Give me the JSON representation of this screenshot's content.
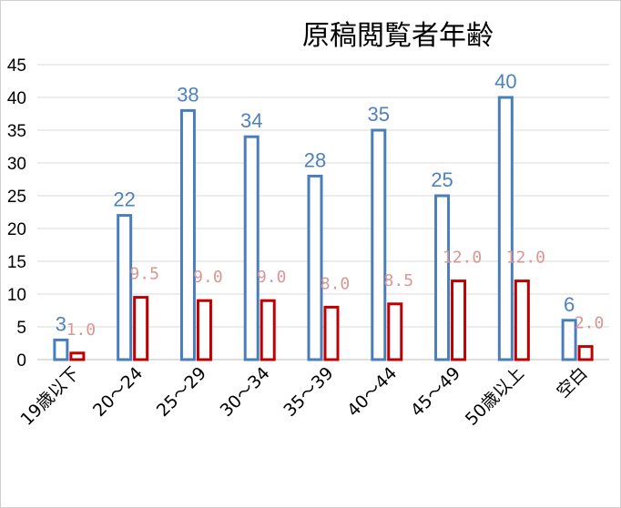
{
  "chart_data": {
    "type": "bar",
    "title": "原稿閲覧者年齢",
    "categories": [
      "19歳以下",
      "20～24",
      "25～29",
      "30～34",
      "35～39",
      "40～44",
      "45～49",
      "50歳以上",
      "空白"
    ],
    "series": [
      {
        "values": [
          3,
          22,
          38,
          34,
          28,
          35,
          25,
          40,
          6
        ],
        "data_labels": [
          "3",
          "22",
          "38",
          "34",
          "28",
          "35",
          "25",
          "40",
          "6"
        ],
        "color": "#4A7EBB",
        "label_color": "#4F81BD"
      },
      {
        "values": [
          1.0,
          9.5,
          9.0,
          9.0,
          8.0,
          8.5,
          12.0,
          12.0,
          2.0
        ],
        "data_labels": [
          "1.0",
          "9.5",
          "9.0",
          "9.0",
          "8.0",
          "8.5",
          "12.0",
          "12.0",
          "2.0"
        ],
        "color": "#C00000",
        "label_color": "#D99694"
      }
    ],
    "yticks": [
      "0",
      "5",
      "10",
      "15",
      "20",
      "25",
      "30",
      "35",
      "40",
      "45"
    ],
    "ylim": [
      0,
      45
    ],
    "grid": true,
    "legend": "none"
  }
}
